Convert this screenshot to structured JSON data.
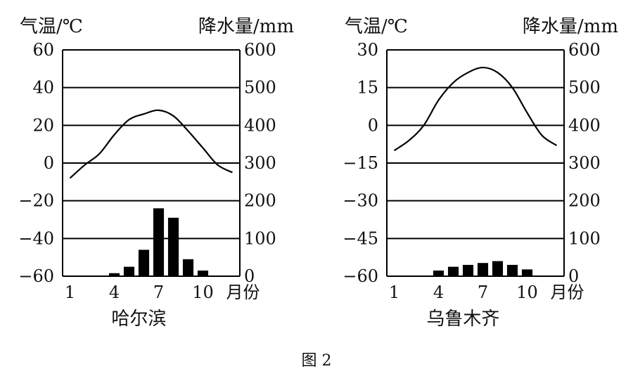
{
  "figure_caption": "图 2",
  "chart_data": [
    {
      "type": "bar+line",
      "name": "哈尔滨",
      "left_axis_label": "气温/℃",
      "right_axis_label": "降水量/mm",
      "x_axis_unit": "月份",
      "x_ticks": [
        "1",
        "4",
        "7",
        "10"
      ],
      "left_ticks": [
        "60",
        "40",
        "20",
        "0",
        "−20",
        "−40",
        "−60"
      ],
      "right_ticks": [
        "600",
        "500",
        "400",
        "300",
        "200",
        "100",
        "0"
      ],
      "left_range": [
        -60,
        60
      ],
      "right_range": [
        0,
        600
      ],
      "grid": "horizontal",
      "months": [
        1,
        2,
        3,
        4,
        5,
        6,
        7,
        8,
        9,
        10,
        11,
        12
      ],
      "temperature": [
        -8,
        -1,
        5,
        15,
        23,
        26,
        28,
        25,
        17,
        8,
        -1,
        -5
      ],
      "precipitation": [
        0,
        0,
        0,
        8,
        25,
        70,
        180,
        155,
        45,
        15,
        0,
        0
      ]
    },
    {
      "type": "bar+line",
      "name": "乌鲁木齐",
      "left_axis_label": "气温/℃",
      "right_axis_label": "降水量/mm",
      "x_axis_unit": "月份",
      "x_ticks": [
        "1",
        "4",
        "7",
        "10"
      ],
      "left_ticks": [
        "30",
        "15",
        "0",
        "−15",
        "−30",
        "−45",
        "−60"
      ],
      "right_ticks": [
        "600",
        "500",
        "400",
        "300",
        "200",
        "100",
        "0"
      ],
      "left_range": [
        -60,
        30
      ],
      "right_range": [
        0,
        600
      ],
      "grid": "horizontal",
      "months": [
        1,
        2,
        3,
        4,
        5,
        6,
        7,
        8,
        9,
        10,
        11,
        12
      ],
      "temperature": [
        -10,
        -6,
        0,
        10,
        17,
        21,
        23,
        21,
        15,
        5,
        -4,
        -8
      ],
      "precipitation": [
        0,
        0,
        0,
        15,
        25,
        30,
        35,
        40,
        30,
        18,
        0,
        0
      ]
    }
  ]
}
